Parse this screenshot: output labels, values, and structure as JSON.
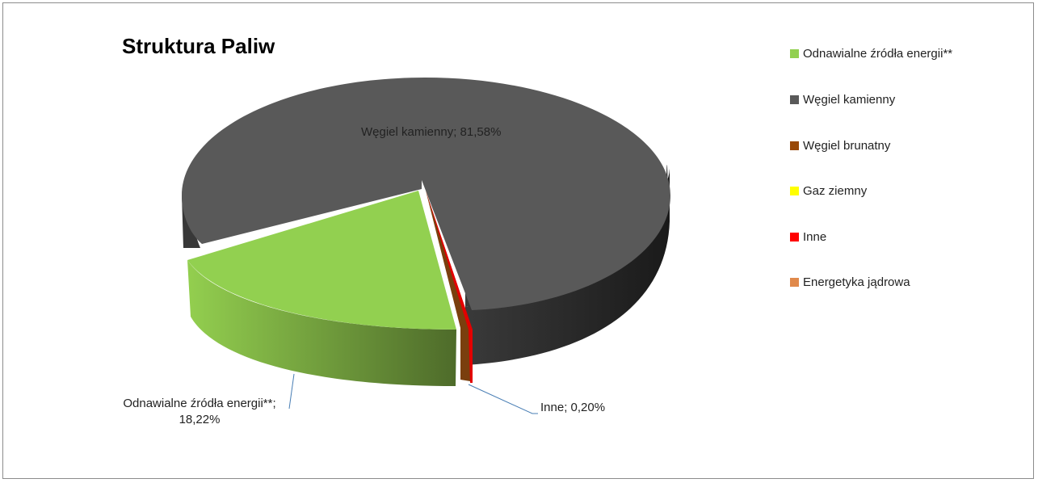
{
  "chart_data": {
    "type": "pie",
    "title": "Struktura Paliw",
    "legend_position": "right",
    "series": [
      {
        "name": "Odnawialne źródła energii**",
        "value": 18.22,
        "color": "#92d050"
      },
      {
        "name": "Węgiel kamienny",
        "value": 81.58,
        "color": "#595959"
      },
      {
        "name": "Węgiel brunatny",
        "value": 0.0,
        "color": "#984807"
      },
      {
        "name": "Gaz ziemny",
        "value": 0.0,
        "color": "#ffff00"
      },
      {
        "name": "Inne",
        "value": 0.2,
        "color": "#ff0000"
      },
      {
        "name": "Energetyka jądrowa",
        "value": 0.0,
        "color": "#e0894b"
      }
    ],
    "data_labels": {
      "coal": "Węgiel kamienny; 81,58%",
      "renewable_line1": "Odnawialne źródła energii**;",
      "renewable_line2": "18,22%",
      "other": "Inne; 0,20%"
    }
  }
}
